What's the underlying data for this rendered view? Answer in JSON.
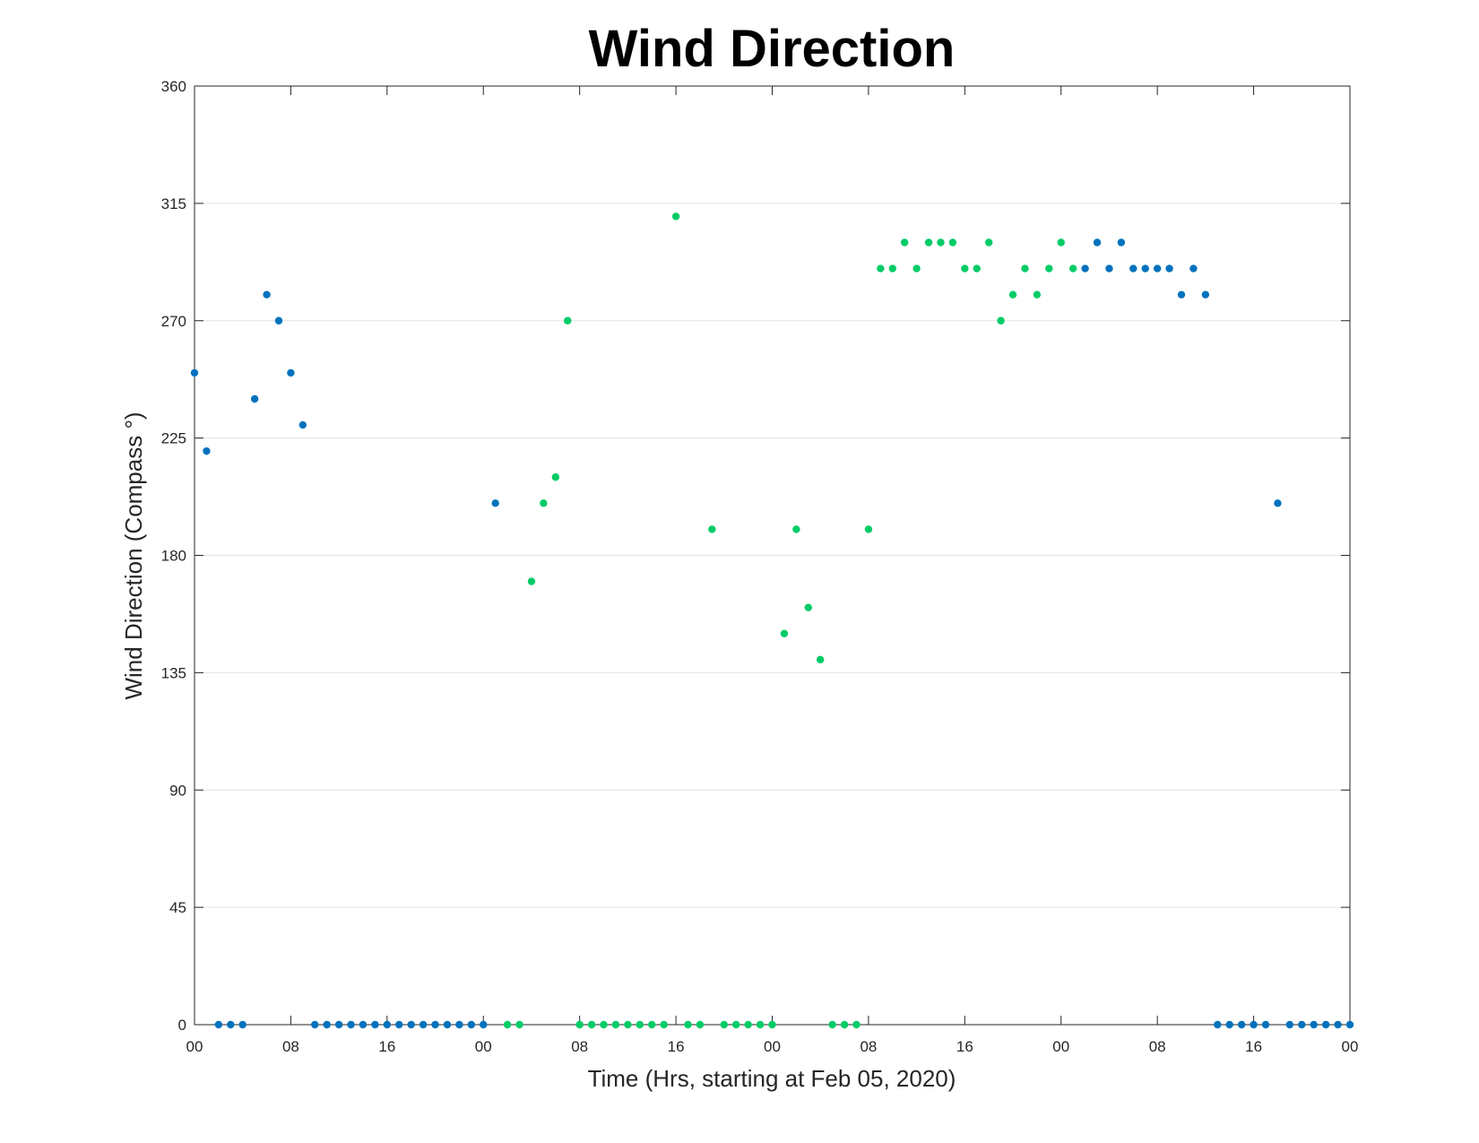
{
  "colors": {
    "blue": "#0072bd",
    "green": "#00cc66"
  },
  "chart_data": {
    "type": "scatter",
    "title": "Wind Direction",
    "xlabel": "Time (Hrs, starting at Feb 05, 2020)",
    "ylabel": "Wind Direction (Compass °)",
    "xlim": [
      0,
      96
    ],
    "ylim": [
      0,
      360
    ],
    "x_unit": "hours",
    "grid": "horizontal",
    "x_ticks": [
      0,
      8,
      16,
      24,
      32,
      40,
      48,
      56,
      64,
      72,
      80,
      88,
      96
    ],
    "x_tick_labels": [
      "00",
      "08",
      "16",
      "00",
      "08",
      "16",
      "00",
      "08",
      "16",
      "00",
      "08",
      "16",
      "00"
    ],
    "y_ticks": [
      0,
      45,
      90,
      135,
      180,
      225,
      270,
      315,
      360
    ],
    "y_tick_labels": [
      "0",
      "45",
      "90",
      "135",
      "180",
      "225",
      "270",
      "315",
      "360"
    ],
    "series": [
      {
        "color": "#0072bd",
        "points": [
          [
            0,
            250
          ],
          [
            1,
            220
          ],
          [
            2,
            0
          ],
          [
            3,
            0
          ],
          [
            4,
            0
          ],
          [
            5,
            240
          ],
          [
            6,
            280
          ],
          [
            7,
            270
          ],
          [
            8,
            250
          ],
          [
            9,
            230
          ],
          [
            10,
            0
          ],
          [
            11,
            0
          ],
          [
            12,
            0
          ],
          [
            13,
            0
          ],
          [
            14,
            0
          ],
          [
            15,
            0
          ],
          [
            16,
            0
          ],
          [
            17,
            0
          ],
          [
            18,
            0
          ],
          [
            19,
            0
          ],
          [
            20,
            0
          ],
          [
            21,
            0
          ],
          [
            22,
            0
          ],
          [
            23,
            0
          ],
          [
            24,
            0
          ],
          [
            25,
            200
          ],
          [
            74,
            290
          ],
          [
            75,
            300
          ],
          [
            76,
            290
          ],
          [
            77,
            300
          ],
          [
            78,
            290
          ],
          [
            79,
            290
          ],
          [
            80,
            290
          ],
          [
            81,
            290
          ],
          [
            82,
            280
          ],
          [
            83,
            290
          ],
          [
            84,
            280
          ],
          [
            85,
            0
          ],
          [
            86,
            0
          ],
          [
            87,
            0
          ],
          [
            88,
            0
          ],
          [
            89,
            0
          ],
          [
            90,
            200
          ],
          [
            91,
            0
          ],
          [
            92,
            0
          ],
          [
            93,
            0
          ],
          [
            94,
            0
          ],
          [
            95,
            0
          ],
          [
            96,
            0
          ]
        ]
      },
      {
        "color": "#00cc66",
        "points": [
          [
            26,
            0
          ],
          [
            27,
            0
          ],
          [
            28,
            170
          ],
          [
            29,
            200
          ],
          [
            30,
            210
          ],
          [
            31,
            270
          ],
          [
            32,
            0
          ],
          [
            33,
            0
          ],
          [
            34,
            0
          ],
          [
            35,
            0
          ],
          [
            36,
            0
          ],
          [
            37,
            0
          ],
          [
            38,
            0
          ],
          [
            39,
            0
          ],
          [
            40,
            310
          ],
          [
            41,
            0
          ],
          [
            42,
            0
          ],
          [
            43,
            190
          ],
          [
            44,
            0
          ],
          [
            45,
            0
          ],
          [
            46,
            0
          ],
          [
            47,
            0
          ],
          [
            48,
            0
          ],
          [
            49,
            150
          ],
          [
            50,
            190
          ],
          [
            51,
            160
          ],
          [
            52,
            140
          ],
          [
            53,
            0
          ],
          [
            54,
            0
          ],
          [
            55,
            0
          ],
          [
            56,
            190
          ],
          [
            57,
            290
          ],
          [
            58,
            290
          ],
          [
            59,
            300
          ],
          [
            60,
            290
          ],
          [
            61,
            300
          ],
          [
            62,
            300
          ],
          [
            63,
            300
          ],
          [
            64,
            290
          ],
          [
            65,
            290
          ],
          [
            66,
            300
          ],
          [
            67,
            270
          ],
          [
            68,
            280
          ],
          [
            69,
            290
          ],
          [
            70,
            280
          ],
          [
            71,
            290
          ],
          [
            72,
            300
          ],
          [
            73,
            290
          ]
        ]
      }
    ]
  }
}
